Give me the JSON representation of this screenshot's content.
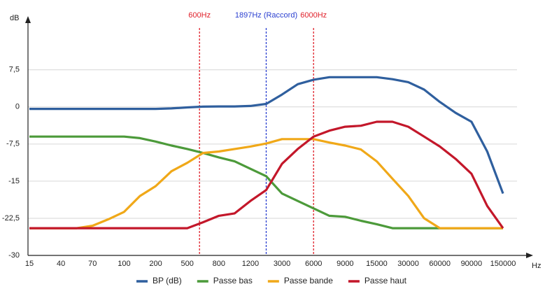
{
  "chart_data": {
    "type": "line",
    "y_label": "dB",
    "x_label": "Hz",
    "categories": [
      15,
      null,
      40,
      null,
      70,
      null,
      100,
      null,
      200,
      null,
      500,
      null,
      800,
      null,
      1200,
      null,
      3000,
      null,
      6000,
      null,
      9000,
      null,
      15000,
      null,
      30000,
      null,
      60000,
      null,
      90000,
      null,
      150000
    ],
    "ylim": [
      -30,
      17.5
    ],
    "yticks": [
      {
        "value": 7.5,
        "label": "7,5"
      },
      0,
      {
        "value": -7.5,
        "label": "-7,5"
      },
      -15,
      {
        "value": -22.5,
        "label": "-22,5"
      },
      -30
    ],
    "grid": true,
    "annotations": [
      {
        "value": 600,
        "label": "600Hz",
        "color": "#e0202a"
      },
      {
        "value": 1897,
        "label": "1897Hz (Raccord)",
        "color": "#2a3fd0"
      },
      {
        "value": 6000,
        "label": "6000Hz",
        "color": "#e0202a"
      }
    ],
    "series": [
      {
        "name": "BP (dB)",
        "color": "#2f5f9e",
        "values": [
          -0.4,
          -0.4,
          -0.4,
          -0.4,
          -0.4,
          -0.4,
          -0.4,
          -0.4,
          -0.4,
          -0.3,
          -0.1,
          0.05,
          0.1,
          0.1,
          0.2,
          0.6,
          2.5,
          4.6,
          5.5,
          6.0,
          6.0,
          6.0,
          6.0,
          5.6,
          5.0,
          3.5,
          1.0,
          -1.2,
          -3.0,
          -9.0,
          -17.5
        ]
      },
      {
        "name": "Passe bas",
        "color": "#4c9a3a",
        "values": [
          -6,
          -6,
          -6,
          -6,
          -6,
          -6,
          -6,
          -6.3,
          -7,
          -7.8,
          -8.5,
          -9.3,
          -10.2,
          -11,
          -12.5,
          -14,
          -17.5,
          -19,
          -20.5,
          -22,
          -22.2,
          -23,
          -23.7,
          -24.5,
          -24.5,
          -24.5,
          -24.5,
          -24.5,
          -24.5,
          -24.5,
          -24.5
        ]
      },
      {
        "name": "Passe bande",
        "color": "#f0a818",
        "values": [
          -24.5,
          -24.5,
          -24.5,
          -24.5,
          -24,
          -22.7,
          -21.2,
          -18,
          -16,
          -13,
          -11.3,
          -9.3,
          -9,
          -8.5,
          -8,
          -7.4,
          -6.5,
          -6.5,
          -6.5,
          -7.2,
          -7.8,
          -8.6,
          -11,
          -14.5,
          -18,
          -22.5,
          -24.5,
          -24.5,
          -24.5,
          -24.5,
          -24.5
        ]
      },
      {
        "name": "Passe haut",
        "color": "#c3172a",
        "values": [
          -24.5,
          -24.5,
          -24.5,
          -24.5,
          -24.5,
          -24.5,
          -24.5,
          -24.5,
          -24.5,
          -24.5,
          -24.5,
          -23.3,
          -22,
          -21.5,
          -19,
          -16.8,
          -11.5,
          -8.5,
          -6,
          -4.8,
          -4,
          -3.8,
          -3,
          -3,
          -4,
          -6,
          -8,
          -10.5,
          -13.5,
          -20,
          -24.5
        ]
      }
    ],
    "legend": "bottom"
  }
}
